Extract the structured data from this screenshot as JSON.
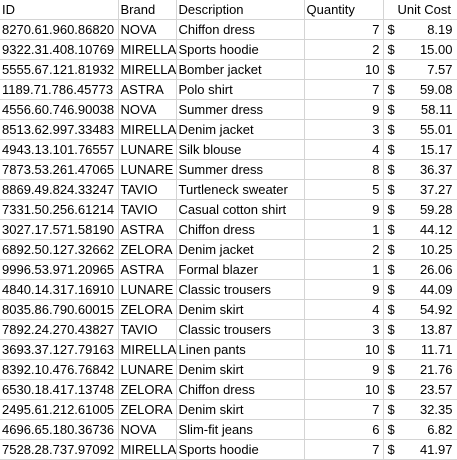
{
  "headers": {
    "id": "ID",
    "brand": "Brand",
    "description": "Description",
    "quantity": "Quantity",
    "unit_cost": "Unit Cost"
  },
  "currency_symbol": "$",
  "rows": [
    {
      "id": "8270.61.960.86820",
      "brand": "NOVA",
      "description": "Chiffon dress",
      "quantity": "7",
      "unit_cost": "8.19"
    },
    {
      "id": "9322.31.408.10769",
      "brand": "MIRELLA",
      "description": "Sports hoodie",
      "quantity": "2",
      "unit_cost": "15.00"
    },
    {
      "id": "5555.67.121.81932",
      "brand": "MIRELLA",
      "description": "Bomber jacket",
      "quantity": "10",
      "unit_cost": "7.57"
    },
    {
      "id": "1189.71.786.45773",
      "brand": "ASTRA",
      "description": "Polo shirt",
      "quantity": "7",
      "unit_cost": "59.08"
    },
    {
      "id": "4556.60.746.90038",
      "brand": "NOVA",
      "description": "Summer dress",
      "quantity": "9",
      "unit_cost": "58.11"
    },
    {
      "id": "8513.62.997.33483",
      "brand": "MIRELLA",
      "description": "Denim jacket",
      "quantity": "3",
      "unit_cost": "55.01"
    },
    {
      "id": "4943.13.101.76557",
      "brand": "LUNARE",
      "description": "Silk blouse",
      "quantity": "4",
      "unit_cost": "15.17"
    },
    {
      "id": "7873.53.261.47065",
      "brand": "LUNARE",
      "description": "Summer dress",
      "quantity": "8",
      "unit_cost": "36.37"
    },
    {
      "id": "8869.49.824.33247",
      "brand": "TAVIO",
      "description": "Turtleneck sweater",
      "quantity": "5",
      "unit_cost": "37.27"
    },
    {
      "id": "7331.50.256.61214",
      "brand": "TAVIO",
      "description": "Casual cotton shirt",
      "quantity": "9",
      "unit_cost": "59.28"
    },
    {
      "id": "3027.17.571.58190",
      "brand": "ASTRA",
      "description": "Chiffon dress",
      "quantity": "1",
      "unit_cost": "44.12"
    },
    {
      "id": "6892.50.127.32662",
      "brand": "ZELORA",
      "description": "Denim jacket",
      "quantity": "2",
      "unit_cost": "10.25"
    },
    {
      "id": "9996.53.971.20965",
      "brand": "ASTRA",
      "description": "Formal blazer",
      "quantity": "1",
      "unit_cost": "26.06"
    },
    {
      "id": "4840.14.317.16910",
      "brand": "LUNARE",
      "description": "Classic trousers",
      "quantity": "9",
      "unit_cost": "44.09"
    },
    {
      "id": "8035.86.790.60015",
      "brand": "ZELORA",
      "description": "Denim skirt",
      "quantity": "4",
      "unit_cost": "54.92"
    },
    {
      "id": "7892.24.270.43827",
      "brand": "TAVIO",
      "description": "Classic trousers",
      "quantity": "3",
      "unit_cost": "13.87"
    },
    {
      "id": "3693.37.127.79163",
      "brand": "MIRELLA",
      "description": "Linen pants",
      "quantity": "10",
      "unit_cost": "11.71"
    },
    {
      "id": "8392.10.476.76842",
      "brand": "LUNARE",
      "description": "Denim skirt",
      "quantity": "9",
      "unit_cost": "21.76"
    },
    {
      "id": "6530.18.417.13748",
      "brand": "ZELORA",
      "description": "Chiffon dress",
      "quantity": "10",
      "unit_cost": "23.57"
    },
    {
      "id": "2495.61.212.61005",
      "brand": "ZELORA",
      "description": "Denim skirt",
      "quantity": "7",
      "unit_cost": "32.35"
    },
    {
      "id": "4696.65.180.36736",
      "brand": "NOVA",
      "description": "Slim-fit jeans",
      "quantity": "6",
      "unit_cost": "6.82"
    },
    {
      "id": "7528.28.737.97092",
      "brand": "MIRELLA",
      "description": "Sports hoodie",
      "quantity": "7",
      "unit_cost": "41.97"
    }
  ]
}
